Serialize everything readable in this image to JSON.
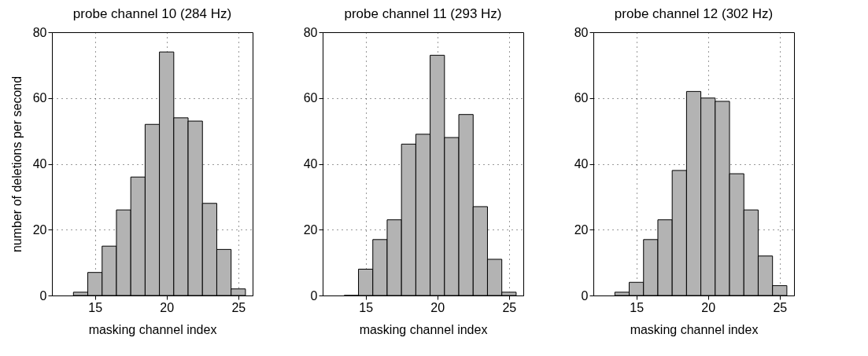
{
  "chart_data": [
    {
      "type": "histogram",
      "title": "probe channel 10 (284 Hz)",
      "xlabel": "masking channel index",
      "ylabel": "number of deletions per second",
      "bins": [
        13.5,
        14.5,
        15.5,
        16.5,
        17.5,
        18.5,
        19.5,
        20.5,
        21.5,
        22.5,
        23.5,
        24.5,
        25.5
      ],
      "values": [
        1,
        7,
        15,
        26,
        36,
        52,
        74,
        54,
        53,
        28,
        14,
        2
      ],
      "color": "#b3b3b3",
      "xlim": [
        12,
        26
      ],
      "xticks": [
        15,
        20,
        25
      ],
      "ylim": [
        0,
        80
      ],
      "yticks": [
        0,
        20,
        40,
        60,
        80
      ],
      "grid": true
    },
    {
      "type": "histogram",
      "title": "probe channel 11 (293 Hz)",
      "xlabel": "masking channel index",
      "bins": [
        13.5,
        14.5,
        15.5,
        16.5,
        17.5,
        18.5,
        19.5,
        20.5,
        21.5,
        22.5,
        23.5,
        24.5,
        25.5
      ],
      "values": [
        0,
        8,
        17,
        23,
        46,
        49,
        73,
        48,
        55,
        27,
        11,
        1
      ],
      "color": "#b3b3b3",
      "xlim": [
        12,
        26
      ],
      "xticks": [
        15,
        20,
        25
      ],
      "ylim": [
        0,
        80
      ],
      "yticks": [
        0,
        20,
        40,
        60,
        80
      ],
      "grid": true
    },
    {
      "type": "histogram",
      "title": "probe channel 12 (302 Hz)",
      "xlabel": "masking channel index",
      "bins": [
        13.5,
        14.5,
        15.5,
        16.5,
        17.5,
        18.5,
        19.5,
        20.5,
        21.5,
        22.5,
        23.5,
        24.5,
        25.5
      ],
      "values": [
        1,
        4,
        17,
        23,
        38,
        62,
        60,
        59,
        37,
        26,
        12,
        3
      ],
      "color": "#b3b3b3",
      "xlim": [
        12,
        26
      ],
      "xticks": [
        15,
        20,
        25
      ],
      "ylim": [
        0,
        80
      ],
      "yticks": [
        0,
        20,
        40,
        60,
        80
      ],
      "grid": true
    }
  ]
}
